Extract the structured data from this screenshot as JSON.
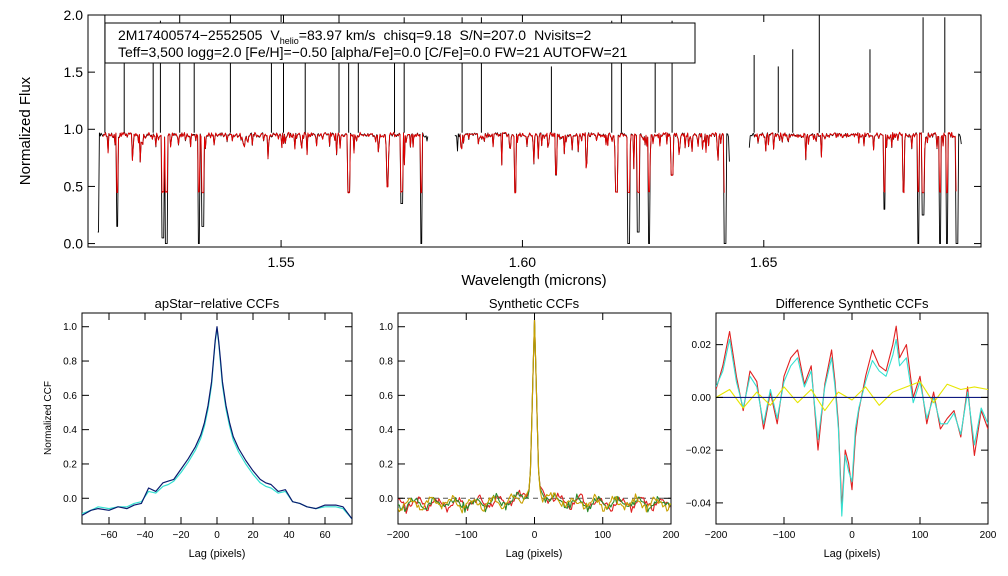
{
  "top_panel": {
    "ylabel": "Normalized Flux",
    "xlabel": "Wavelength (microns)",
    "header_line1": {
      "id": "2M17400574−2552505",
      "vhelio_prefix": "V",
      "vhelio_sub": "helio",
      "vhelio_value": "=83.97 km/s",
      "chisq": "chisq=9.18",
      "snr": "S/N=207.0",
      "nvisits": "Nvisits=2"
    },
    "header_line2": "Teff=3,500 logg=2.0 [Fe/H]=−0.50 [alpha/Fe]=0.0 [C/Fe]=0.0 FW=21 AUTOFW=21"
  },
  "bottom_panels": {
    "ccf_title": "apStar−relative CCFs",
    "ccf_ylabel": "Normalized CCF",
    "ccf_xlabel": "Lag (pixels)",
    "synth_title": "Synthetic CCFs",
    "synth_xlabel": "Lag (pixels)",
    "diff_title": "Difference Synthetic CCFs",
    "diff_xlabel": "Lag (pixels)"
  },
  "colors": {
    "observed": "#000000",
    "model": "#e00000",
    "ccf_dark": "#0a1a6e",
    "ccf_cyan": "#33e0d0",
    "synth_red": "#e02020",
    "synth_green": "#2a8a2a",
    "synth_gold": "#c8a000",
    "diff_yellow": "#e6e600",
    "diff_navy": "#101a80",
    "zero_line": "#555555"
  },
  "chart_data": [
    {
      "type": "line",
      "name": "spectrum",
      "title": "",
      "xlabel": "Wavelength (microns)",
      "ylabel": "Normalized Flux",
      "xlim": [
        1.51,
        1.695
      ],
      "ylim": [
        -0.03,
        2.0
      ],
      "xticks": [
        1.55,
        1.6,
        1.65
      ],
      "xtick_labels": [
        "1.55",
        "1.60",
        "1.65"
      ],
      "yticks": [
        0.0,
        0.5,
        1.0,
        1.5,
        2.0
      ],
      "ytick_labels": [
        "0.0",
        "0.5",
        "1.0",
        "1.5",
        "2.0"
      ],
      "chip_gaps": [
        [
          1.5805,
          1.586
        ],
        [
          1.643,
          1.647
        ]
      ],
      "continuum": 0.97,
      "absorption_lines": [
        [
          1.5115,
          0.02
        ],
        [
          1.512,
          0.1
        ],
        [
          1.516,
          0.15
        ],
        [
          1.5255,
          0.05
        ],
        [
          1.5262,
          0.0
        ],
        [
          1.533,
          0.0
        ],
        [
          1.5338,
          0.15
        ],
        [
          1.564,
          0.45
        ],
        [
          1.572,
          0.5
        ],
        [
          1.575,
          0.35
        ],
        [
          1.579,
          0.0
        ],
        [
          1.5985,
          0.45
        ],
        [
          1.607,
          0.6
        ],
        [
          1.6195,
          0.45
        ],
        [
          1.622,
          0.0
        ],
        [
          1.624,
          0.1
        ],
        [
          1.6262,
          0.0
        ],
        [
          1.631,
          0.6
        ],
        [
          1.642,
          0.0
        ],
        [
          1.675,
          0.3
        ],
        [
          1.679,
          0.45
        ],
        [
          1.682,
          0.0
        ],
        [
          1.683,
          0.25
        ],
        [
          1.6865,
          0.0
        ],
        [
          1.688,
          0.0
        ],
        [
          1.69,
          0.0
        ]
      ],
      "emission_spikes": [
        [
          1.5135,
          2.0
        ],
        [
          1.5175,
          1.63
        ],
        [
          1.5235,
          1.82
        ],
        [
          1.525,
          1.95
        ],
        [
          1.529,
          2.0
        ],
        [
          1.532,
          1.65
        ],
        [
          1.5395,
          2.0
        ],
        [
          1.548,
          1.6
        ],
        [
          1.5505,
          2.0
        ],
        [
          1.555,
          1.75
        ],
        [
          1.562,
          2.0
        ],
        [
          1.564,
          1.65
        ],
        [
          1.566,
          1.6
        ],
        [
          1.5735,
          1.9
        ],
        [
          1.5755,
          1.98
        ],
        [
          1.5875,
          1.98
        ],
        [
          1.5915,
          1.98
        ],
        [
          1.606,
          1.55
        ],
        [
          1.6185,
          1.95
        ],
        [
          1.6205,
          2.0
        ],
        [
          1.6275,
          1.6
        ],
        [
          1.631,
          1.95
        ],
        [
          1.648,
          1.65
        ],
        [
          1.653,
          1.55
        ],
        [
          1.656,
          1.7
        ],
        [
          1.6615,
          2.0
        ],
        [
          1.672,
          1.7
        ],
        [
          1.683,
          1.98
        ],
        [
          1.6875,
          1.98
        ]
      ],
      "series": [
        {
          "name": "observed",
          "color": "#000000"
        },
        {
          "name": "best-fit model",
          "color": "#e00000"
        }
      ]
    },
    {
      "type": "line",
      "name": "apstar_relative_ccfs",
      "title": "apStar−relative CCFs",
      "xlabel": "Lag (pixels)",
      "ylabel": "Normalized CCF",
      "xlim": [
        -75,
        75
      ],
      "ylim": [
        -0.15,
        1.08
      ],
      "xticks": [
        -60,
        -40,
        -20,
        0,
        20,
        40,
        60
      ],
      "xtick_labels": [
        "−60",
        "−40",
        "−20",
        "0",
        "20",
        "40",
        "60"
      ],
      "yticks": [
        0.0,
        0.2,
        0.4,
        0.6,
        0.8,
        1.0
      ],
      "ytick_labels": [
        "0.0",
        "0.2",
        "0.4",
        "0.6",
        "0.8",
        "1.0"
      ],
      "series": [
        {
          "name": "visit 1",
          "color": "#0a1a6e",
          "x": [
            -75,
            -70,
            -66,
            -60,
            -55,
            -50,
            -46,
            -42,
            -38,
            -34,
            -30,
            -27,
            -24,
            -20,
            -16,
            -12,
            -9,
            -7,
            -5,
            -3,
            -2,
            -1,
            0,
            1,
            2,
            3,
            5,
            7,
            9,
            12,
            16,
            20,
            24,
            27,
            30,
            34,
            38,
            42,
            46,
            50,
            55,
            60,
            66,
            70,
            75
          ],
          "y": [
            -0.1,
            -0.07,
            -0.06,
            -0.07,
            -0.05,
            -0.06,
            -0.04,
            -0.03,
            0.06,
            0.04,
            0.09,
            0.1,
            0.11,
            0.17,
            0.23,
            0.3,
            0.37,
            0.44,
            0.54,
            0.68,
            0.8,
            0.92,
            1.0,
            0.91,
            0.8,
            0.68,
            0.54,
            0.44,
            0.36,
            0.29,
            0.22,
            0.16,
            0.11,
            0.09,
            0.08,
            0.04,
            0.05,
            -0.02,
            -0.03,
            -0.05,
            -0.06,
            -0.04,
            -0.04,
            -0.05,
            -0.12
          ]
        },
        {
          "name": "visit 2",
          "color": "#33e0d0",
          "x": [
            -75,
            -70,
            -66,
            -60,
            -55,
            -50,
            -46,
            -42,
            -38,
            -34,
            -30,
            -27,
            -24,
            -20,
            -16,
            -12,
            -9,
            -7,
            -5,
            -3,
            -2,
            -1,
            0,
            1,
            2,
            3,
            5,
            7,
            9,
            12,
            16,
            20,
            24,
            27,
            30,
            34,
            38,
            42,
            46,
            50,
            55,
            60,
            66,
            70,
            75
          ],
          "y": [
            -0.09,
            -0.07,
            -0.05,
            -0.06,
            -0.05,
            -0.05,
            -0.03,
            -0.02,
            0.04,
            0.03,
            0.07,
            0.08,
            0.1,
            0.15,
            0.21,
            0.28,
            0.35,
            0.42,
            0.52,
            0.66,
            0.79,
            0.91,
            0.99,
            0.9,
            0.78,
            0.66,
            0.52,
            0.42,
            0.34,
            0.27,
            0.2,
            0.14,
            0.09,
            0.07,
            0.06,
            0.03,
            0.04,
            -0.02,
            -0.03,
            -0.05,
            -0.06,
            -0.05,
            -0.05,
            -0.06,
            -0.12
          ]
        }
      ]
    },
    {
      "type": "line",
      "name": "synthetic_ccfs",
      "title": "Synthetic CCFs",
      "xlabel": "Lag (pixels)",
      "xlim": [
        -200,
        200
      ],
      "ylim": [
        -0.15,
        1.08
      ],
      "xticks": [
        -200,
        -100,
        0,
        100,
        200
      ],
      "xtick_labels": [
        "−200",
        "−100",
        "0",
        "100",
        "200"
      ],
      "yticks": [
        0.0,
        0.2,
        0.4,
        0.6,
        0.8,
        1.0
      ],
      "ytick_labels": [
        "0.0",
        "0.2",
        "0.4",
        "0.6",
        "0.8",
        "1.0"
      ],
      "baseline": 0.0,
      "peak": 1.0,
      "series": [
        {
          "name": "synthetic 1",
          "color": "#e02020"
        },
        {
          "name": "synthetic 2",
          "color": "#2a8a2a"
        },
        {
          "name": "synthetic 3",
          "color": "#c8a000"
        }
      ]
    },
    {
      "type": "line",
      "name": "difference_synthetic_ccfs",
      "title": "Difference Synthetic CCFs",
      "xlabel": "Lag (pixels)",
      "xlim": [
        -200,
        200
      ],
      "ylim": [
        -0.048,
        0.032
      ],
      "xticks": [
        -200,
        -100,
        0,
        100,
        200
      ],
      "xtick_labels": [
        "−200",
        "−100",
        "0",
        "100",
        "200"
      ],
      "yticks": [
        -0.04,
        -0.02,
        0.0,
        0.02
      ],
      "ytick_labels": [
        "−0.04",
        "−0.02",
        "0.00",
        "0.02"
      ],
      "series": [
        {
          "name": "red",
          "color": "#e02020",
          "x": [
            -200,
            -190,
            -180,
            -170,
            -160,
            -150,
            -140,
            -130,
            -120,
            -110,
            -100,
            -90,
            -80,
            -70,
            -60,
            -50,
            -40,
            -30,
            -25,
            -20,
            -15,
            -10,
            -5,
            0,
            5,
            10,
            20,
            30,
            40,
            50,
            60,
            65,
            70,
            80,
            90,
            100,
            110,
            120,
            130,
            140,
            150,
            160,
            170,
            180,
            190,
            200
          ],
          "y": [
            0.003,
            0.012,
            0.025,
            0.008,
            -0.005,
            0.01,
            0.006,
            -0.012,
            0.002,
            -0.01,
            0.008,
            0.015,
            0.018,
            0.005,
            0.012,
            -0.02,
            0.005,
            0.018,
            0.006,
            -0.01,
            -0.042,
            -0.02,
            -0.025,
            -0.035,
            -0.015,
            -0.005,
            0.008,
            0.018,
            0.012,
            0.01,
            0.02,
            0.027,
            0.015,
            0.02,
            0.0,
            0.008,
            -0.01,
            0.002,
            -0.012,
            -0.008,
            -0.005,
            -0.015,
            0.004,
            -0.022,
            -0.005,
            -0.012
          ]
        },
        {
          "name": "cyan",
          "color": "#33e0d0",
          "x": [
            -200,
            -190,
            -180,
            -170,
            -160,
            -150,
            -140,
            -130,
            -120,
            -110,
            -100,
            -90,
            -80,
            -70,
            -60,
            -50,
            -40,
            -30,
            -25,
            -20,
            -15,
            -10,
            -5,
            0,
            5,
            10,
            20,
            30,
            40,
            50,
            60,
            65,
            70,
            80,
            90,
            100,
            110,
            120,
            130,
            140,
            150,
            160,
            170,
            180,
            190,
            200
          ],
          "y": [
            0.004,
            0.01,
            0.022,
            0.006,
            -0.004,
            0.008,
            0.004,
            -0.01,
            0.003,
            -0.008,
            0.006,
            0.012,
            0.015,
            0.004,
            0.01,
            -0.016,
            0.004,
            0.015,
            0.004,
            -0.012,
            -0.045,
            -0.022,
            -0.028,
            -0.032,
            -0.012,
            -0.004,
            0.006,
            0.014,
            0.01,
            0.008,
            0.016,
            0.022,
            0.012,
            0.015,
            -0.002,
            0.006,
            -0.008,
            0.0,
            -0.01,
            -0.01,
            -0.006,
            -0.014,
            0.002,
            -0.018,
            -0.004,
            -0.01
          ]
        },
        {
          "name": "yellow",
          "color": "#e6e600",
          "x": [
            -200,
            -180,
            -160,
            -140,
            -120,
            -100,
            -80,
            -60,
            -40,
            -20,
            0,
            20,
            40,
            60,
            80,
            100,
            120,
            140,
            160,
            180,
            200
          ],
          "y": [
            0.0,
            0.003,
            -0.004,
            0.002,
            -0.003,
            0.004,
            -0.002,
            0.003,
            -0.005,
            0.002,
            -0.001,
            0.004,
            -0.003,
            0.002,
            0.004,
            0.006,
            -0.002,
            0.005,
            0.003,
            0.004,
            0.003
          ]
        },
        {
          "name": "navy",
          "color": "#101a80",
          "x": [
            -200,
            200
          ],
          "y": [
            0.0,
            0.0
          ]
        }
      ]
    }
  ]
}
